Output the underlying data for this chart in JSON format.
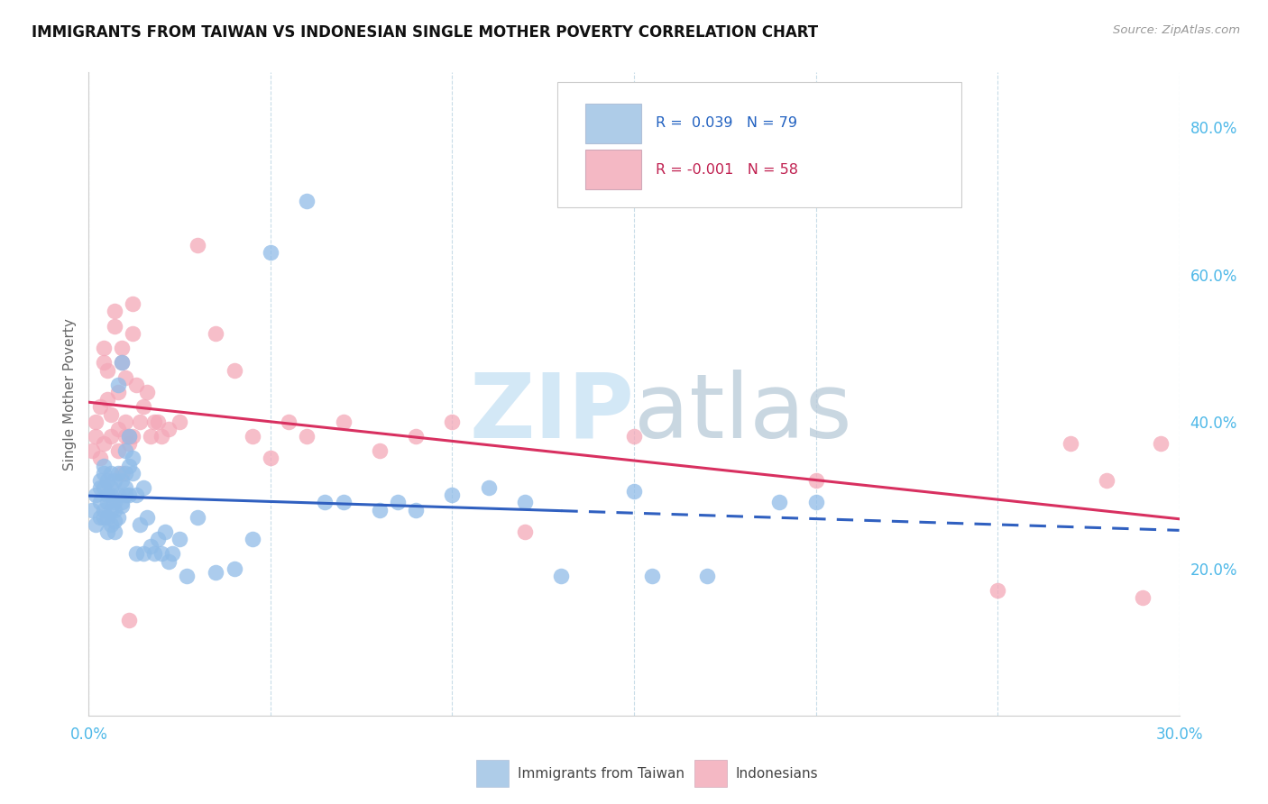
{
  "title": "IMMIGRANTS FROM TAIWAN VS INDONESIAN SINGLE MOTHER POVERTY CORRELATION CHART",
  "source": "Source: ZipAtlas.com",
  "ylabel": "Single Mother Poverty",
  "xlim": [
    0.0,
    30.0
  ],
  "ylim": [
    0.0,
    87.5
  ],
  "right_yticks": [
    20.0,
    40.0,
    60.0,
    80.0
  ],
  "right_yticklabels": [
    "20.0%",
    "40.0%",
    "60.0%",
    "80.0%"
  ],
  "scatter_color1": "#90bce8",
  "scatter_color2": "#f4a8b8",
  "legend_color1": "#aecce8",
  "legend_color2": "#f4b8c4",
  "line_color1": "#3060c0",
  "line_color2": "#d83060",
  "watermark_zip_color": "#cce4f5",
  "watermark_atlas_color": "#b8cad8",
  "taiwan_x": [
    0.1,
    0.2,
    0.2,
    0.3,
    0.3,
    0.3,
    0.3,
    0.4,
    0.4,
    0.4,
    0.4,
    0.4,
    0.5,
    0.5,
    0.5,
    0.5,
    0.5,
    0.6,
    0.6,
    0.6,
    0.6,
    0.6,
    0.7,
    0.7,
    0.7,
    0.7,
    0.7,
    0.8,
    0.8,
    0.8,
    0.8,
    0.9,
    0.9,
    0.9,
    0.9,
    1.0,
    1.0,
    1.0,
    1.0,
    1.1,
    1.1,
    1.1,
    1.2,
    1.2,
    1.3,
    1.3,
    1.4,
    1.5,
    1.5,
    1.6,
    1.7,
    1.8,
    1.9,
    2.0,
    2.1,
    2.2,
    2.3,
    2.5,
    2.7,
    3.0,
    3.5,
    4.0,
    4.5,
    5.0,
    6.0,
    6.5,
    7.0,
    8.0,
    9.0,
    10.0,
    12.0,
    15.0,
    17.0,
    19.0,
    15.5,
    20.0,
    8.5,
    11.0,
    13.0
  ],
  "taiwan_y": [
    28.0,
    30.0,
    26.0,
    31.0,
    29.0,
    32.0,
    27.0,
    28.0,
    27.0,
    31.0,
    33.0,
    34.0,
    29.0,
    30.0,
    32.0,
    25.0,
    27.0,
    31.0,
    28.0,
    33.0,
    26.0,
    30.0,
    25.0,
    29.0,
    32.0,
    26.5,
    28.0,
    33.0,
    27.0,
    30.0,
    45.0,
    48.0,
    28.5,
    32.0,
    29.0,
    30.0,
    31.0,
    36.0,
    33.0,
    38.0,
    30.0,
    34.0,
    35.0,
    33.0,
    22.0,
    30.0,
    26.0,
    22.0,
    31.0,
    27.0,
    23.0,
    22.0,
    24.0,
    22.0,
    25.0,
    21.0,
    22.0,
    24.0,
    19.0,
    27.0,
    19.5,
    20.0,
    24.0,
    63.0,
    70.0,
    29.0,
    29.0,
    28.0,
    28.0,
    30.0,
    29.0,
    30.5,
    19.0,
    29.0,
    19.0,
    29.0,
    29.0,
    31.0,
    19.0
  ],
  "indonesia_x": [
    0.1,
    0.2,
    0.2,
    0.3,
    0.3,
    0.4,
    0.4,
    0.4,
    0.5,
    0.5,
    0.6,
    0.6,
    0.7,
    0.7,
    0.8,
    0.8,
    0.9,
    0.9,
    1.0,
    1.0,
    1.1,
    1.1,
    1.2,
    1.2,
    1.3,
    1.4,
    1.5,
    1.6,
    1.7,
    1.8,
    1.9,
    2.0,
    2.2,
    2.5,
    3.0,
    3.5,
    4.0,
    4.5,
    5.0,
    5.5,
    6.0,
    7.0,
    8.0,
    9.0,
    10.0,
    12.0,
    15.0,
    20.0,
    25.0,
    29.0,
    27.0,
    29.5,
    28.0,
    0.8,
    0.9,
    1.0,
    1.1,
    1.2
  ],
  "indonesia_y": [
    36.0,
    40.0,
    38.0,
    42.0,
    35.0,
    50.0,
    48.0,
    37.0,
    43.0,
    47.0,
    38.0,
    41.0,
    53.0,
    55.0,
    44.0,
    39.0,
    50.0,
    48.0,
    46.0,
    40.0,
    37.0,
    38.0,
    56.0,
    52.0,
    45.0,
    40.0,
    42.0,
    44.0,
    38.0,
    40.0,
    40.0,
    38.0,
    39.0,
    40.0,
    64.0,
    52.0,
    47.0,
    38.0,
    35.0,
    40.0,
    38.0,
    40.0,
    36.0,
    38.0,
    40.0,
    25.0,
    38.0,
    32.0,
    17.0,
    16.0,
    37.0,
    37.0,
    32.0,
    36.0,
    33.0,
    38.0,
    13.0,
    38.0
  ]
}
